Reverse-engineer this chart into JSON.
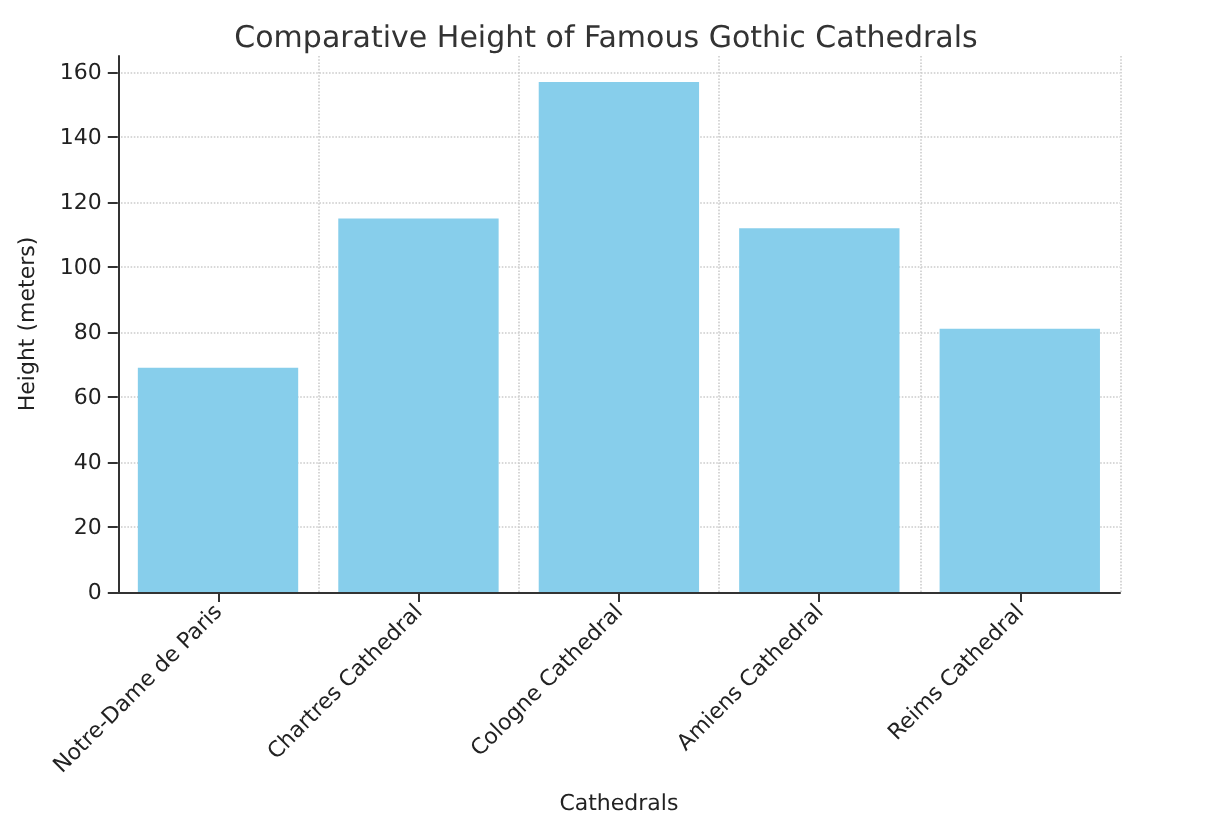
{
  "chart_data": {
    "type": "bar",
    "title": "Comparative Height of Famous Gothic Cathedrals",
    "xlabel": "Cathedrals",
    "ylabel": "Height (meters)",
    "categories": [
      "Notre-Dame de Paris",
      "Chartres Cathedral",
      "Cologne Cathedral",
      "Amiens Cathedral",
      "Reims Cathedral"
    ],
    "values": [
      69,
      115,
      157,
      112,
      81
    ],
    "color": "#87ceeb",
    "ylim": [
      0,
      165
    ],
    "yticks": [
      0,
      20,
      40,
      60,
      80,
      100,
      120,
      140,
      160
    ],
    "grid": true
  }
}
